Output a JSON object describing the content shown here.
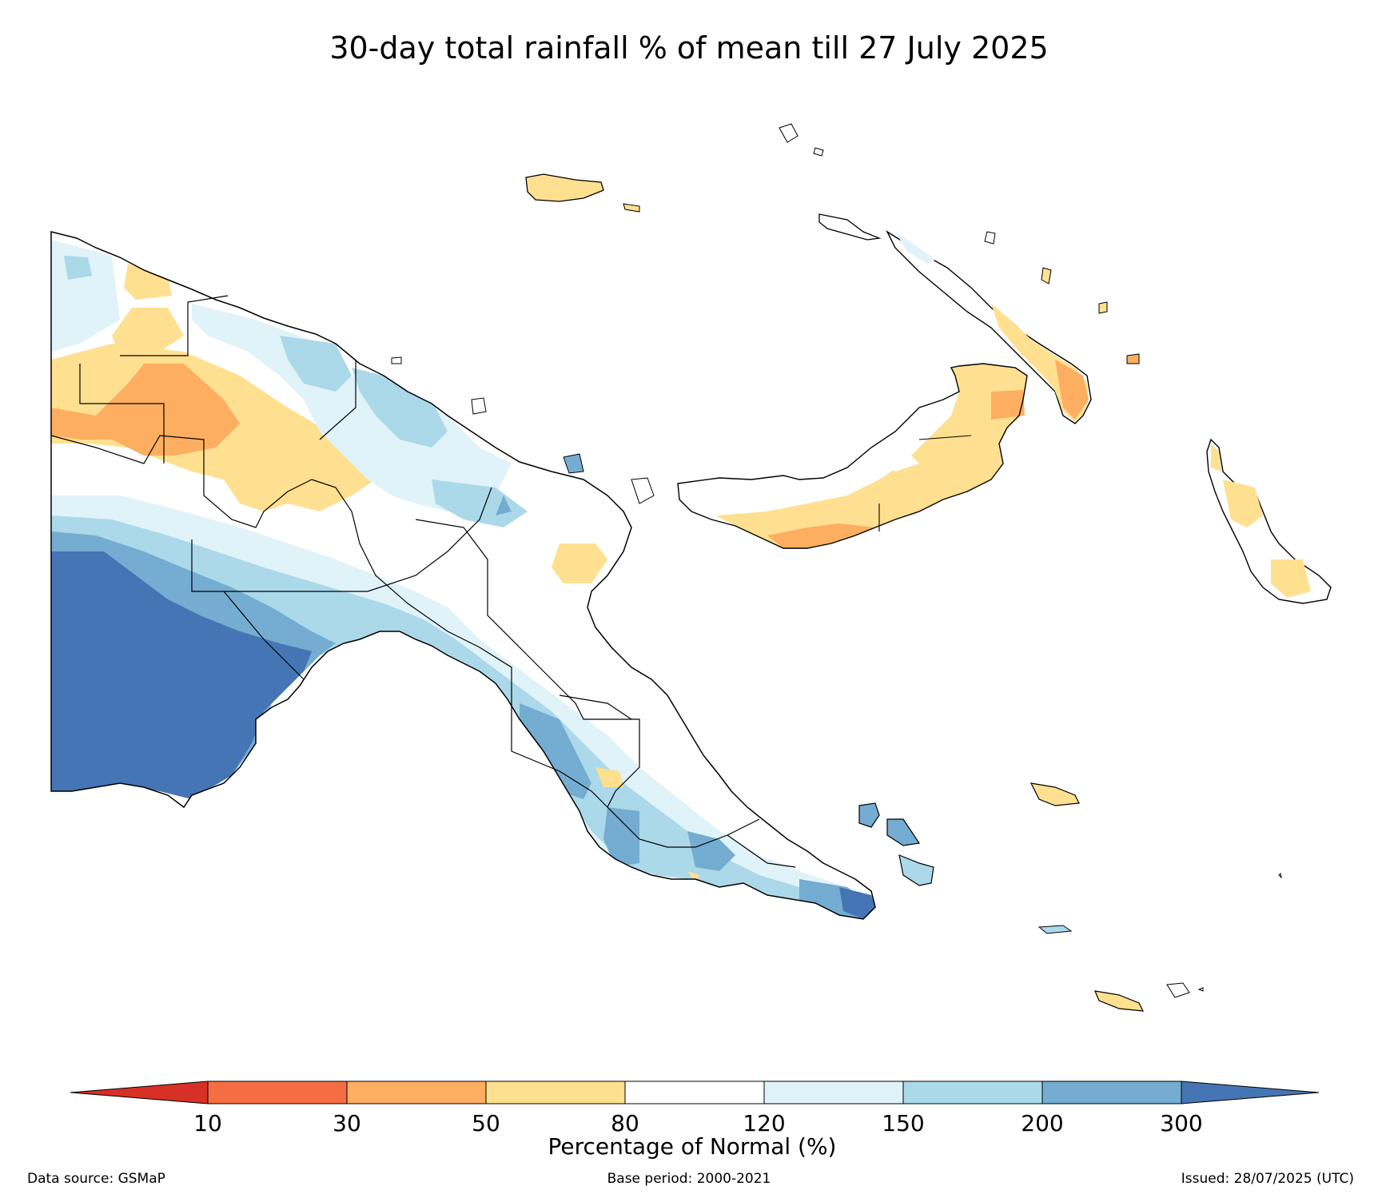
{
  "title": "30-day total rainfall % of mean till 27 July 2025",
  "colorbar": {
    "label": "Percentage of Normal (%)",
    "ticks": [
      "10",
      "30",
      "50",
      "80",
      "120",
      "150",
      "200",
      "300"
    ],
    "colors": [
      "#d73027",
      "#f46d43",
      "#fdae61",
      "#fee090",
      "#ffffff",
      "#e0f3f8",
      "#abd9e9",
      "#74add1",
      "#4575b4"
    ],
    "extend": "both"
  },
  "legend_classes": [
    {
      "range": "<10",
      "color": "#d73027"
    },
    {
      "range": "10-30",
      "color": "#f46d43"
    },
    {
      "range": "30-50",
      "color": "#fdae61"
    },
    {
      "range": "50-80",
      "color": "#fee090"
    },
    {
      "range": "80-120",
      "color": "#ffffff"
    },
    {
      "range": "120-150",
      "color": "#e0f3f8"
    },
    {
      "range": "150-200",
      "color": "#abd9e9"
    },
    {
      "range": "200-300",
      "color": "#74add1"
    },
    {
      "range": ">300",
      "color": "#4575b4"
    }
  ],
  "footer": {
    "source": "Data source: GSMaP",
    "base_period": "Base period: 2000-2021",
    "issued": "Issued: 28/07/2025 (UTC)"
  }
}
